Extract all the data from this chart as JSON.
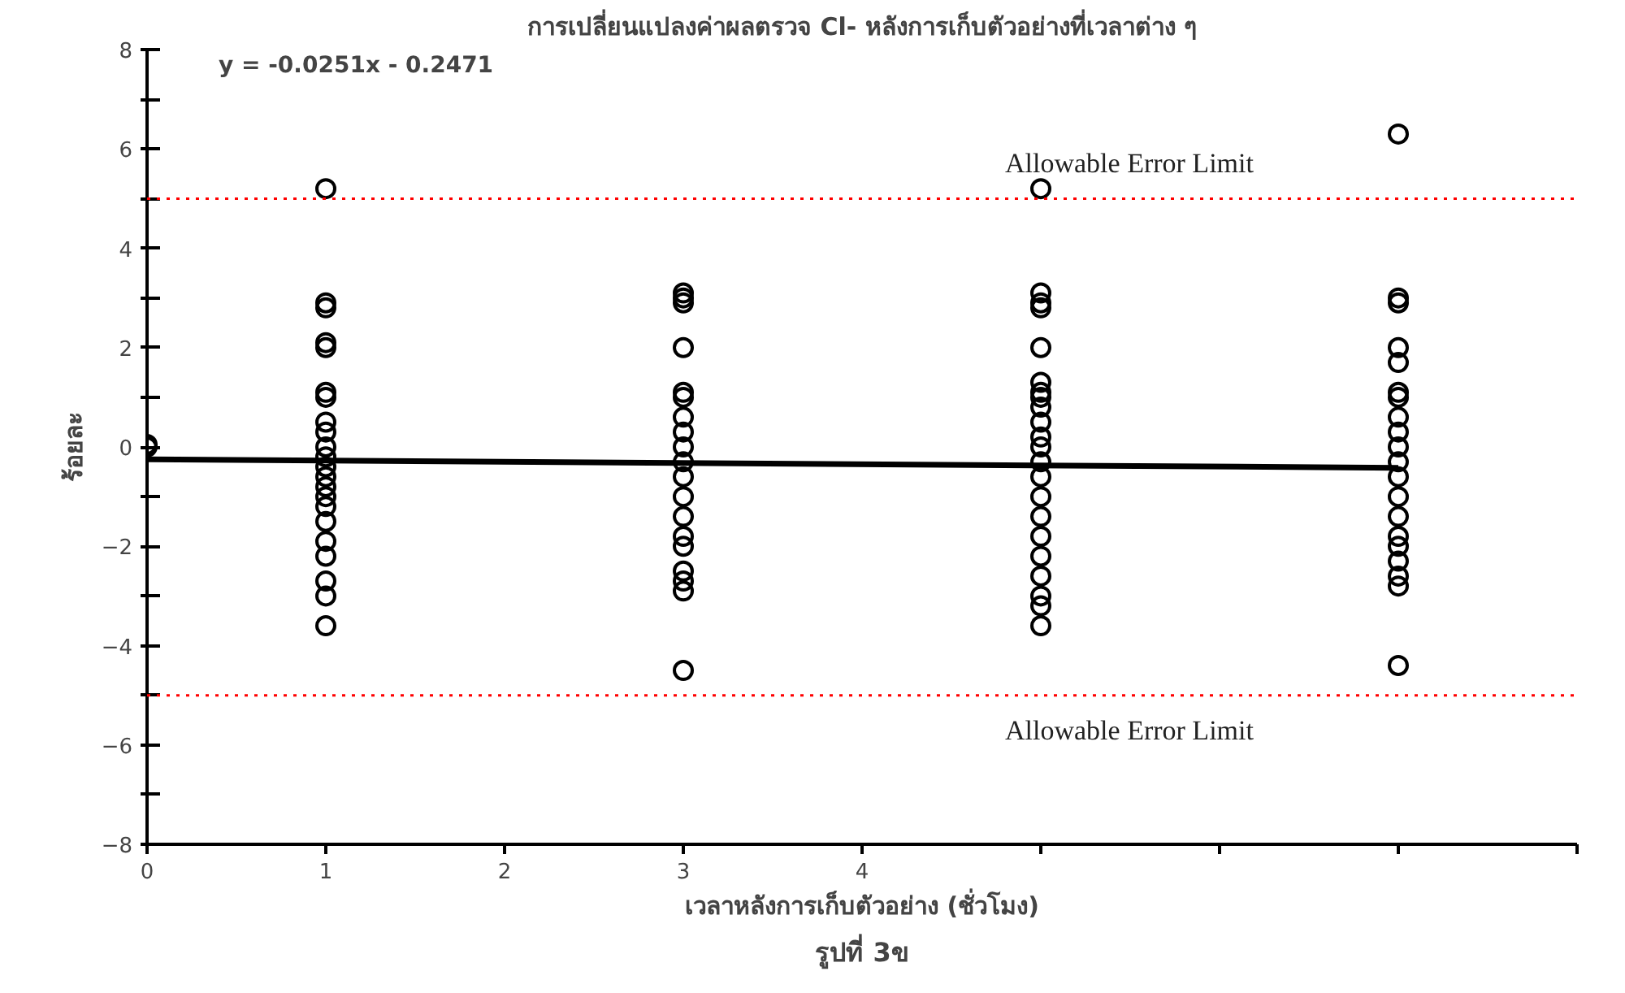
{
  "chart_data": {
    "type": "scatter",
    "title": "การเปลี่ยนแปลงค่าผลตรวจ Cl- หลังการเก็บตัวอย่างที่เวลาต่าง ๆ",
    "xlabel": "เวลาหลังการเก็บตัวอย่าง (ชั่วโมง)",
    "ylabel": "ร้อยละ",
    "annotations": [
      "y = -0.0251x - 0.2471",
      "รูปที่ 3ข"
    ],
    "xlim": [
      0,
      8
    ],
    "ylim": [
      -8,
      8
    ],
    "xticks": [
      0,
      1,
      2,
      3,
      4,
      {
        "value": 5,
        "label": null
      },
      {
        "value": 6,
        "label": null
      },
      {
        "value": 7,
        "label": null
      },
      {
        "value": 8,
        "label": null
      }
    ],
    "yticks": [
      -8,
      {
        "value": -7,
        "label": null
      },
      -6,
      {
        "value": -5,
        "label": null
      },
      -4,
      {
        "value": -3,
        "label": null
      },
      -2,
      {
        "value": -1,
        "label": null
      },
      0,
      {
        "value": 1,
        "label": null
      },
      2,
      {
        "value": 3,
        "label": null
      },
      4,
      {
        "value": 5,
        "label": null
      },
      6,
      {
        "value": 7,
        "label": null
      },
      8
    ],
    "grid": false,
    "marker": "circle",
    "series": [
      {
        "color": "#000000",
        "x": [
          0,
          0,
          1,
          1,
          1,
          1,
          1,
          1,
          1,
          1,
          1,
          1,
          1,
          1,
          1,
          1,
          1,
          1,
          1,
          1,
          1,
          1,
          1,
          1,
          3,
          3,
          3,
          3,
          3,
          3,
          3,
          3,
          3,
          3,
          3,
          3,
          3,
          3,
          3,
          3,
          3,
          3,
          3,
          5,
          5,
          5,
          5,
          5,
          5,
          5,
          5,
          5,
          5,
          5,
          5,
          5,
          5,
          5,
          5,
          5,
          5,
          5,
          5,
          5,
          5,
          7,
          7,
          7,
          7,
          7,
          7,
          7,
          7,
          7,
          7,
          7,
          7,
          7,
          7,
          7,
          7,
          7,
          7,
          7,
          7
        ],
        "values": [
          0,
          0.05,
          5.2,
          2.9,
          2.8,
          2.1,
          2.0,
          1.1,
          1.0,
          0.5,
          0.3,
          0,
          -0.2,
          -0.4,
          -0.6,
          -0.8,
          -1.0,
          -1.2,
          -1.5,
          -1.9,
          -2.2,
          -2.7,
          -3.0,
          -3.6,
          3.1,
          3.0,
          2.9,
          2.0,
          1.1,
          1.0,
          0.6,
          0.3,
          0,
          -0.3,
          -0.6,
          -1.0,
          -1.4,
          -1.8,
          -2.0,
          -2.5,
          -2.7,
          -2.9,
          -4.5,
          5.2,
          3.1,
          2.9,
          2.8,
          2.0,
          1.3,
          1.1,
          1.0,
          0.8,
          0.5,
          0.2,
          0,
          -0.3,
          -0.6,
          -1.0,
          -1.4,
          -1.8,
          -2.2,
          -2.6,
          -3.0,
          -3.2,
          -3.6,
          6.3,
          3.0,
          2.9,
          2.0,
          1.7,
          1.1,
          1.0,
          0.6,
          0.3,
          0,
          -0.3,
          -0.6,
          -1.0,
          -1.4,
          -1.8,
          -2.0,
          -2.3,
          -2.6,
          -2.8,
          -4.4
        ]
      },
      {
        "type": "line",
        "color": "#000000",
        "marker": "none",
        "x": [
          0,
          7
        ],
        "values": [
          -0.25,
          -0.42
        ]
      }
    ],
    "ref_lines": [
      {
        "axis": "y",
        "value": 5,
        "label": "Allowable Error Limit",
        "color": "#ff0000",
        "line_style": "dotted"
      },
      {
        "axis": "y",
        "value": -5,
        "label": "Allowable Error Limit",
        "color": "#ff0000",
        "line_style": "dotted"
      }
    ]
  }
}
